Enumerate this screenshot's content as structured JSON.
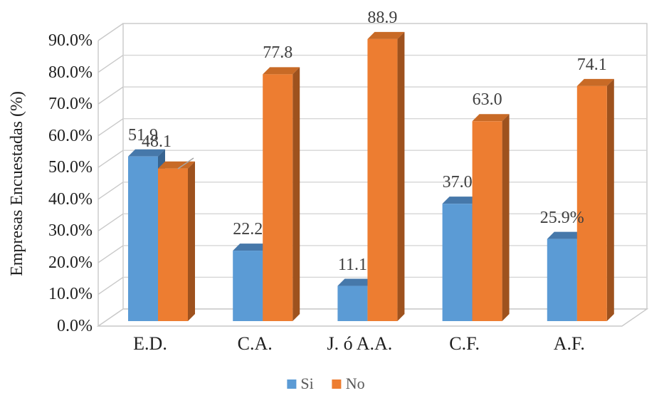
{
  "chart_data": {
    "type": "bar",
    "style": "3d-clustered-column",
    "title": "",
    "xlabel": "",
    "ylabel": "Empresas Encuestadas (%)",
    "categories": [
      "E.D.",
      "C.A.",
      "J. ó A.A.",
      "C.F.",
      "A.F."
    ],
    "series": [
      {
        "name": "Si",
        "color": "#5B9BD5",
        "color_top": "#4678AA",
        "color_side": "#376491",
        "values": [
          51.9,
          22.2,
          11.1,
          37.0,
          25.9
        ],
        "labels": [
          "51.9",
          "22.2",
          "11.1",
          "37.0",
          "25.9%"
        ]
      },
      {
        "name": "No",
        "color": "#ED7D31",
        "color_top": "#C86A26",
        "color_side": "#9E521E",
        "values": [
          48.1,
          77.8,
          88.9,
          63.0,
          74.1
        ],
        "labels": [
          "48.1",
          "77.8",
          "88.9",
          "63.0",
          "74.1"
        ]
      }
    ],
    "y_axis": {
      "min": 0,
      "max": 90,
      "step": 10,
      "tick_labels": [
        "0.0%",
        "10.0%",
        "20.0%",
        "30.0%",
        "40.0%",
        "50.0%",
        "60.0%",
        "70.0%",
        "80.0%",
        "90.0%"
      ]
    },
    "legend": {
      "position": "bottom",
      "entries": [
        "Si",
        "No"
      ]
    },
    "grid": true,
    "colors": {
      "gridline": "#D6D6D6",
      "frame": "#C9C9C9",
      "leader_line": "#A6A6A6",
      "tick_text": "#1f1f1f",
      "data_label_text": "#3f3f3f",
      "legend_text": "#595959"
    }
  }
}
